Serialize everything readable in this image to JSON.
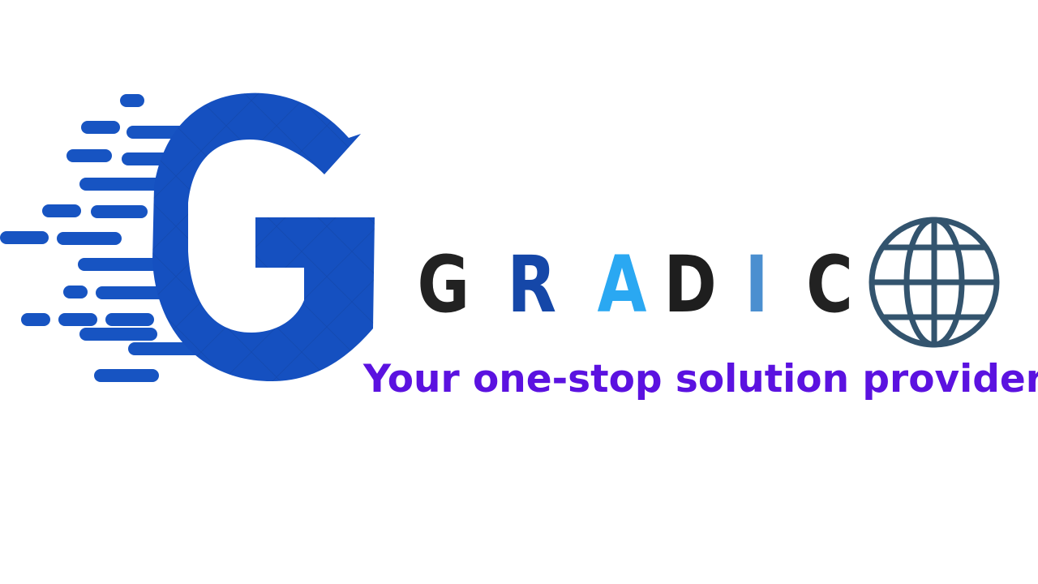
{
  "brand": {
    "letters": [
      "G",
      "R",
      "A",
      "D",
      "I",
      "C"
    ]
  },
  "tagline": "Your one-stop solution provider",
  "colors": {
    "g_mark": "#1550c0",
    "globe": "#33546e",
    "tagline": "#5b12e0",
    "letter_black": "#222222",
    "letter_navy": "#1547a8",
    "letter_sky": "#2aa8f2",
    "letter_steel": "#4b8fd0"
  },
  "icons": [
    "speed-g-mark-icon",
    "globe-icon"
  ]
}
